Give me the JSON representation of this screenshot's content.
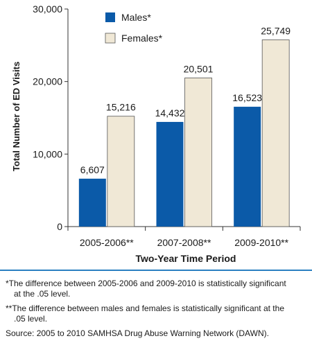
{
  "chart_data": {
    "type": "bar",
    "categories": [
      "2005-2006**",
      "2007-2008**",
      "2009-2010**"
    ],
    "series": [
      {
        "name": "Males*",
        "values": [
          6607,
          14432,
          16523
        ],
        "color": "#0b5aa8"
      },
      {
        "name": "Females*",
        "values": [
          15216,
          20501,
          25749
        ],
        "color": "#f0e8d6"
      }
    ],
    "value_labels": [
      [
        "6,607",
        "14,432",
        "16,523"
      ],
      [
        "15,216",
        "20,501",
        "25,749"
      ]
    ],
    "ylim": [
      0,
      30000
    ],
    "yticks": [
      0,
      10000,
      20000,
      30000
    ],
    "ytick_labels": [
      "0",
      "10,000",
      "20,000",
      "30,000"
    ],
    "xlabel": "Two-Year Time Period",
    "ylabel": "Total Number of ED Visits",
    "legend_position": "top-left",
    "grid": false
  },
  "footnotes": {
    "note1_line1": "*The difference between 2005-2006 and 2009-2010 is statistically significant",
    "note1_line2": "at the .05 level.",
    "note2_line1": "**The difference between males and females is statistically significant at the",
    "note2_line2": ".05 level.",
    "source": "Source: 2005 to 2010 SAMHSA Drug Abuse Warning Network (DAWN)."
  },
  "colors": {
    "rule": "#2a7fc1",
    "axis": "#333333",
    "bar_outline": "#555555"
  }
}
